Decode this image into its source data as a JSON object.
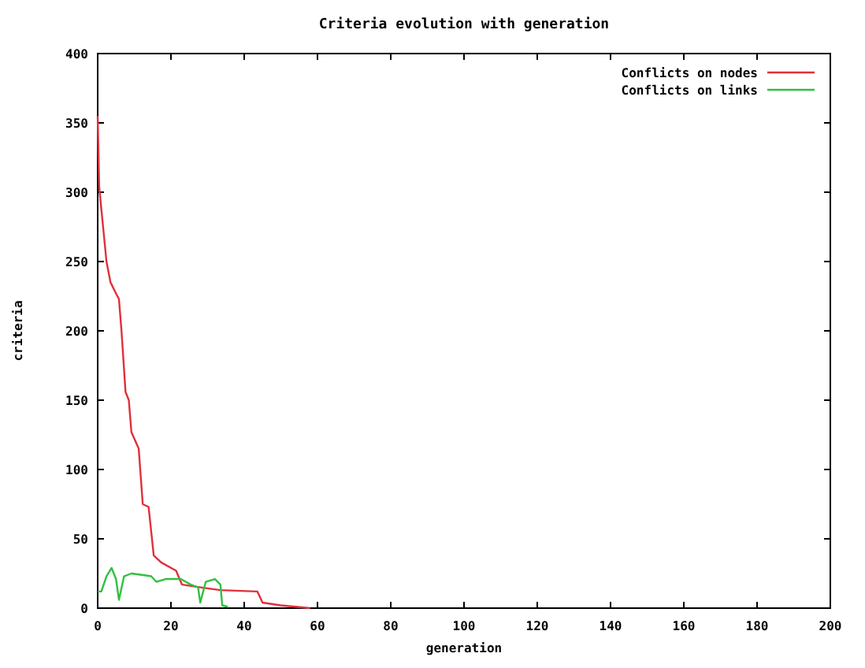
{
  "chart_data": {
    "type": "line",
    "title": "Criteria evolution with generation",
    "xlabel": "generation",
    "ylabel": "criteria",
    "xlim": [
      0,
      200
    ],
    "xticks": [
      0,
      20,
      40,
      60,
      80,
      100,
      120,
      140,
      160,
      180,
      200
    ],
    "ylim": [
      0,
      400
    ],
    "yticks": [
      0,
      50,
      100,
      150,
      200,
      250,
      300,
      350,
      400
    ],
    "grid": false,
    "legend": "top right",
    "series": [
      {
        "name": "Conflicts on nodes",
        "color": "#e0303a",
        "x": [
          0,
          0.4,
          2.4,
          3.5,
          5,
          5.8,
          6.5,
          7.6,
          8.5,
          9.2,
          11.2,
          12.3,
          13.9,
          15.3,
          17.3,
          21.4,
          23,
          28,
          33.5,
          43.6,
          45,
          50,
          54,
          58
        ],
        "values": [
          355,
          304,
          250,
          235,
          227,
          223,
          200,
          156,
          150,
          127,
          115,
          75,
          73,
          38,
          33,
          27,
          17,
          15,
          13,
          12,
          4,
          2,
          1,
          0
        ]
      },
      {
        "name": "Conflicts on links",
        "color": "#30c040",
        "x": [
          0,
          1,
          2.4,
          3.8,
          5,
          5.8,
          7.2,
          9.2,
          12,
          14.6,
          16,
          18.6,
          22.7,
          25.4,
          27.4,
          28,
          29.5,
          32,
          33.5,
          34,
          35.5
        ],
        "values": [
          12,
          12,
          23,
          29,
          21,
          6,
          23,
          25,
          24,
          23,
          19,
          21,
          21,
          17,
          15,
          4,
          19,
          21,
          17,
          2,
          1
        ]
      }
    ]
  }
}
